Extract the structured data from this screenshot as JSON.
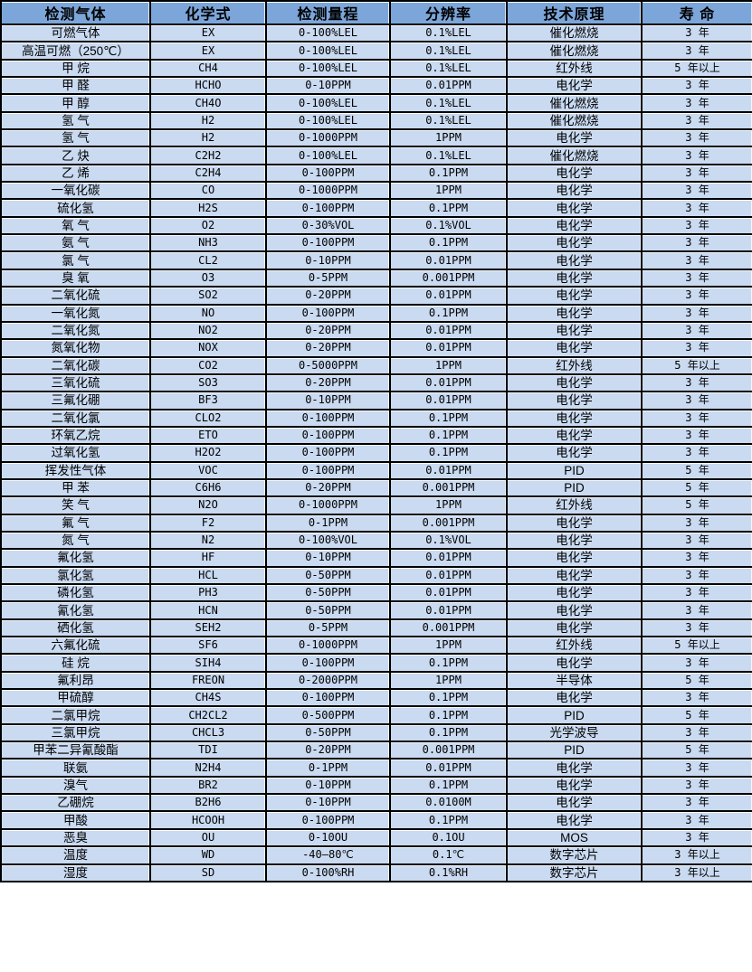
{
  "colors": {
    "header_bg": "#7ca6da",
    "row_bg": "#c9daf1",
    "border": "#000000",
    "text": "#000000"
  },
  "table": {
    "columns": [
      "检测气体",
      "化学式",
      "检测量程",
      "分辨率",
      "技术原理",
      "寿 命"
    ],
    "rows": [
      [
        "可燃气体",
        "EX",
        "0-100%LEL",
        "0.1%LEL",
        "催化燃烧",
        "3 年"
      ],
      [
        "高温可燃（250℃）",
        "EX",
        "0-100%LEL",
        "0.1%LEL",
        "催化燃烧",
        "3 年"
      ],
      [
        "甲 烷",
        "CH4",
        "0-100%LEL",
        "0.1%LEL",
        "红外线",
        "5 年以上"
      ],
      [
        "甲 醛",
        "HCHO",
        "0-10PPM",
        "0.01PPM",
        "电化学",
        "3 年"
      ],
      [
        "甲 醇",
        "CH4O",
        "0-100%LEL",
        "0.1%LEL",
        "催化燃烧",
        "3 年"
      ],
      [
        "氢 气",
        "H2",
        "0-100%LEL",
        "0.1%LEL",
        "催化燃烧",
        "3 年"
      ],
      [
        "氢 气",
        "H2",
        "0-1000PPM",
        "1PPM",
        "电化学",
        "3 年"
      ],
      [
        "乙 炔",
        "C2H2",
        "0-100%LEL",
        "0.1%LEL",
        "催化燃烧",
        "3 年"
      ],
      [
        "乙 烯",
        "C2H4",
        "0-100PPM",
        "0.1PPM",
        "电化学",
        "3 年"
      ],
      [
        "一氧化碳",
        "CO",
        "0-1000PPM",
        "1PPM",
        "电化学",
        "3 年"
      ],
      [
        "硫化氢",
        "H2S",
        "0-100PPM",
        "0.1PPM",
        "电化学",
        "3 年"
      ],
      [
        "氧 气",
        "O2",
        "0-30%VOL",
        "0.1%VOL",
        "电化学",
        "3 年"
      ],
      [
        "氨 气",
        "NH3",
        "0-100PPM",
        "0.1PPM",
        "电化学",
        "3 年"
      ],
      [
        "氯 气",
        "CL2",
        "0-10PPM",
        "0.01PPM",
        "电化学",
        "3 年"
      ],
      [
        "臭 氧",
        "O3",
        "0-5PPM",
        "0.001PPM",
        "电化学",
        "3 年"
      ],
      [
        "二氧化硫",
        "SO2",
        "0-20PPM",
        "0.01PPM",
        "电化学",
        "3 年"
      ],
      [
        "一氧化氮",
        "NO",
        "0-100PPM",
        "0.1PPM",
        "电化学",
        "3 年"
      ],
      [
        "二氧化氮",
        "NO2",
        "0-20PPM",
        "0.01PPM",
        "电化学",
        "3 年"
      ],
      [
        "氮氧化物",
        "NOX",
        "0-20PPM",
        "0.01PPM",
        "电化学",
        "3 年"
      ],
      [
        "二氧化碳",
        "CO2",
        "0-5000PPM",
        "1PPM",
        "红外线",
        "5 年以上"
      ],
      [
        "三氧化硫",
        "SO3",
        "0-20PPM",
        "0.01PPM",
        "电化学",
        "3 年"
      ],
      [
        "三氟化硼",
        "BF3",
        "0-10PPM",
        "0.01PPM",
        "电化学",
        "3 年"
      ],
      [
        "二氧化氯",
        "CLO2",
        "0-100PPM",
        "0.1PPM",
        "电化学",
        "3 年"
      ],
      [
        "环氧乙烷",
        "ETO",
        "0-100PPM",
        "0.1PPM",
        "电化学",
        "3 年"
      ],
      [
        "过氧化氢",
        "H2O2",
        "0-100PPM",
        "0.1PPM",
        "电化学",
        "3 年"
      ],
      [
        "挥发性气体",
        "VOC",
        "0-100PPM",
        "0.01PPM",
        "PID",
        "5 年"
      ],
      [
        "甲 苯",
        "C6H6",
        "0-20PPM",
        "0.001PPM",
        "PID",
        "5 年"
      ],
      [
        "笑 气",
        "N2O",
        "0-1000PPM",
        "1PPM",
        "红外线",
        "5 年"
      ],
      [
        "氟 气",
        "F2",
        "0-1PPM",
        "0.001PPM",
        "电化学",
        "3 年"
      ],
      [
        "氮 气",
        "N2",
        "0-100%VOL",
        "0.1%VOL",
        "电化学",
        "3 年"
      ],
      [
        "氟化氢",
        "HF",
        "0-10PPM",
        "0.01PPM",
        "电化学",
        "3 年"
      ],
      [
        "氯化氢",
        "HCL",
        "0-50PPM",
        "0.01PPM",
        "电化学",
        "3 年"
      ],
      [
        "磷化氢",
        "PH3",
        "0-50PPM",
        "0.01PPM",
        "电化学",
        "3 年"
      ],
      [
        "氰化氢",
        "HCN",
        "0-50PPM",
        "0.01PPM",
        "电化学",
        "3 年"
      ],
      [
        "硒化氢",
        "SEH2",
        "0-5PPM",
        "0.001PPM",
        "电化学",
        "3 年"
      ],
      [
        "六氟化硫",
        "SF6",
        "0-1000PPM",
        "1PPM",
        "红外线",
        "5 年以上"
      ],
      [
        "硅 烷",
        "SIH4",
        "0-100PPM",
        "0.1PPM",
        "电化学",
        "3 年"
      ],
      [
        "氟利昂",
        "FREON",
        "0-2000PPM",
        "1PPM",
        "半导体",
        "5 年"
      ],
      [
        "甲硫醇",
        "CH4S",
        "0-100PPM",
        "0.1PPM",
        "电化学",
        "3 年"
      ],
      [
        "二氯甲烷",
        "CH2CL2",
        "0-500PPM",
        "0.1PPM",
        "PID",
        "5 年"
      ],
      [
        "三氯甲烷",
        "CHCL3",
        "0-50PPM",
        "0.1PPM",
        "光学波导",
        "3 年"
      ],
      [
        "甲苯二异氰酸酯",
        "TDI",
        "0-20PPM",
        "0.001PPM",
        "PID",
        "5 年"
      ],
      [
        "联氨",
        "N2H4",
        "0-1PPM",
        "0.01PPM",
        "电化学",
        "3 年"
      ],
      [
        "溴气",
        "BR2",
        "0-10PPM",
        "0.1PPM",
        "电化学",
        "3 年"
      ],
      [
        "乙硼烷",
        "B2H6",
        "0-10PPM",
        "0.0100M",
        "电化学",
        "3 年"
      ],
      [
        "甲酸",
        "HCOOH",
        "0-100PPM",
        "0.1PPM",
        "电化学",
        "3 年"
      ],
      [
        "恶臭",
        "OU",
        "0-10OU",
        "0.1OU",
        "MOS",
        "3 年"
      ],
      [
        "温度",
        "WD",
        "-40—80℃",
        "0.1℃",
        "数字芯片",
        "3 年以上"
      ],
      [
        "湿度",
        "SD",
        "0-100%RH",
        "0.1%RH",
        "数字芯片",
        "3 年以上"
      ]
    ]
  }
}
